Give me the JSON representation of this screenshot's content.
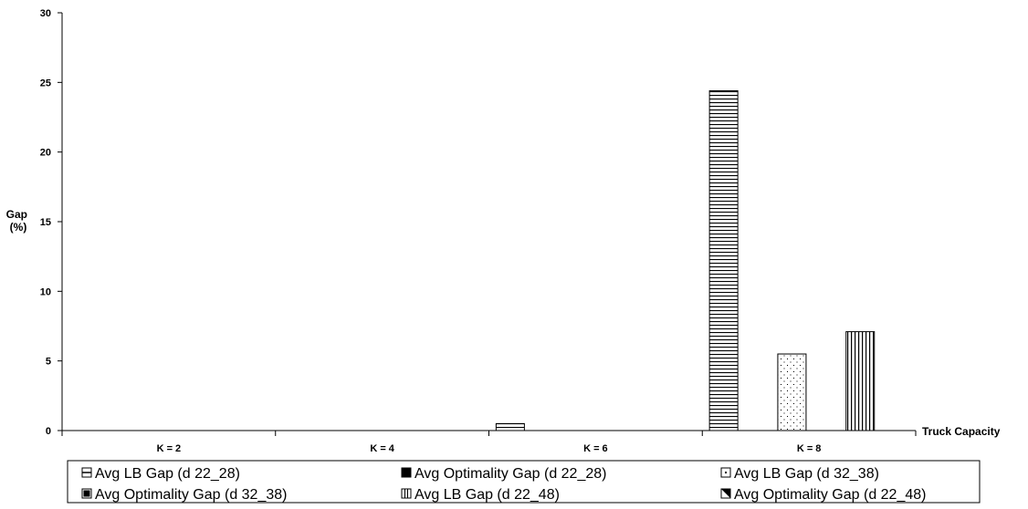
{
  "chart_data": {
    "type": "bar",
    "categories": [
      "K = 2",
      "K = 4",
      "K = 6",
      "K = 8"
    ],
    "series": [
      {
        "name": "Avg LB Gap (d 22_28)",
        "pattern": "hstripe",
        "values": [
          0,
          0,
          0.5,
          24.4
        ]
      },
      {
        "name": "Avg Optimality Gap (d 22_28)",
        "pattern": "solid",
        "values": [
          0,
          0,
          0,
          0
        ]
      },
      {
        "name": "Avg LB Gap (d 32_38)",
        "pattern": "dots",
        "values": [
          0,
          0,
          0,
          5.5
        ]
      },
      {
        "name": "Avg Optimality Gap (d 32_38)",
        "pattern": "halfsolid",
        "values": [
          0,
          0,
          0,
          0
        ]
      },
      {
        "name": "Avg LB Gap (d 22_48)",
        "pattern": "vstripe",
        "values": [
          0,
          0,
          0,
          7.1
        ]
      },
      {
        "name": "Avg Optimality Gap (d 22_48)",
        "pattern": "diag",
        "values": [
          0,
          0,
          0,
          0
        ]
      }
    ],
    "xlabel": "Truck Capacity",
    "ylabel": [
      "Gap",
      "(%)"
    ],
    "ylim": [
      0,
      30
    ],
    "yticks": [
      0,
      5,
      10,
      15,
      20,
      25,
      30
    ],
    "grid": false,
    "legend_position": "bottom"
  }
}
